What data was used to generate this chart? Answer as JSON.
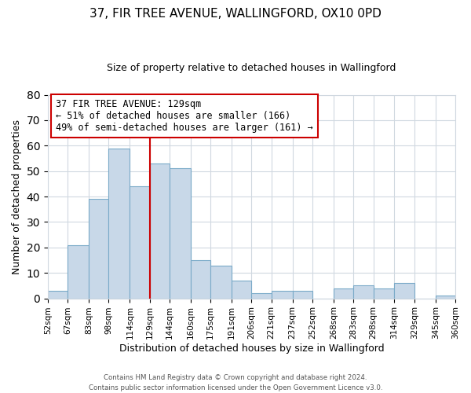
{
  "title": "37, FIR TREE AVENUE, WALLINGFORD, OX10 0PD",
  "subtitle": "Size of property relative to detached houses in Wallingford",
  "xlabel": "Distribution of detached houses by size in Wallingford",
  "ylabel": "Number of detached properties",
  "bin_edges": [
    52,
    67,
    83,
    98,
    114,
    129,
    144,
    160,
    175,
    191,
    206,
    221,
    237,
    252,
    268,
    283,
    298,
    314,
    329,
    345,
    360
  ],
  "bar_heights": [
    3,
    21,
    39,
    59,
    44,
    53,
    51,
    15,
    13,
    7,
    2,
    3,
    3,
    0,
    4,
    5,
    4,
    6,
    0,
    1
  ],
  "bar_color": "#c8d8e8",
  "bar_edgecolor": "#7aaac8",
  "vline_x": 129,
  "vline_color": "#cc0000",
  "ylim": [
    0,
    80
  ],
  "yticks": [
    0,
    10,
    20,
    30,
    40,
    50,
    60,
    70,
    80
  ],
  "annotation_title": "37 FIR TREE AVENUE: 129sqm",
  "annotation_line1": "← 51% of detached houses are smaller (166)",
  "annotation_line2": "49% of semi-detached houses are larger (161) →",
  "footer1": "Contains HM Land Registry data © Crown copyright and database right 2024.",
  "footer2": "Contains public sector information licensed under the Open Government Licence v3.0.",
  "tick_labels": [
    "52sqm",
    "67sqm",
    "83sqm",
    "98sqm",
    "114sqm",
    "129sqm",
    "144sqm",
    "160sqm",
    "175sqm",
    "191sqm",
    "206sqm",
    "221sqm",
    "237sqm",
    "252sqm",
    "268sqm",
    "283sqm",
    "298sqm",
    "314sqm",
    "329sqm",
    "345sqm",
    "360sqm"
  ],
  "background_color": "#ffffff",
  "grid_color": "#d0d8e0"
}
